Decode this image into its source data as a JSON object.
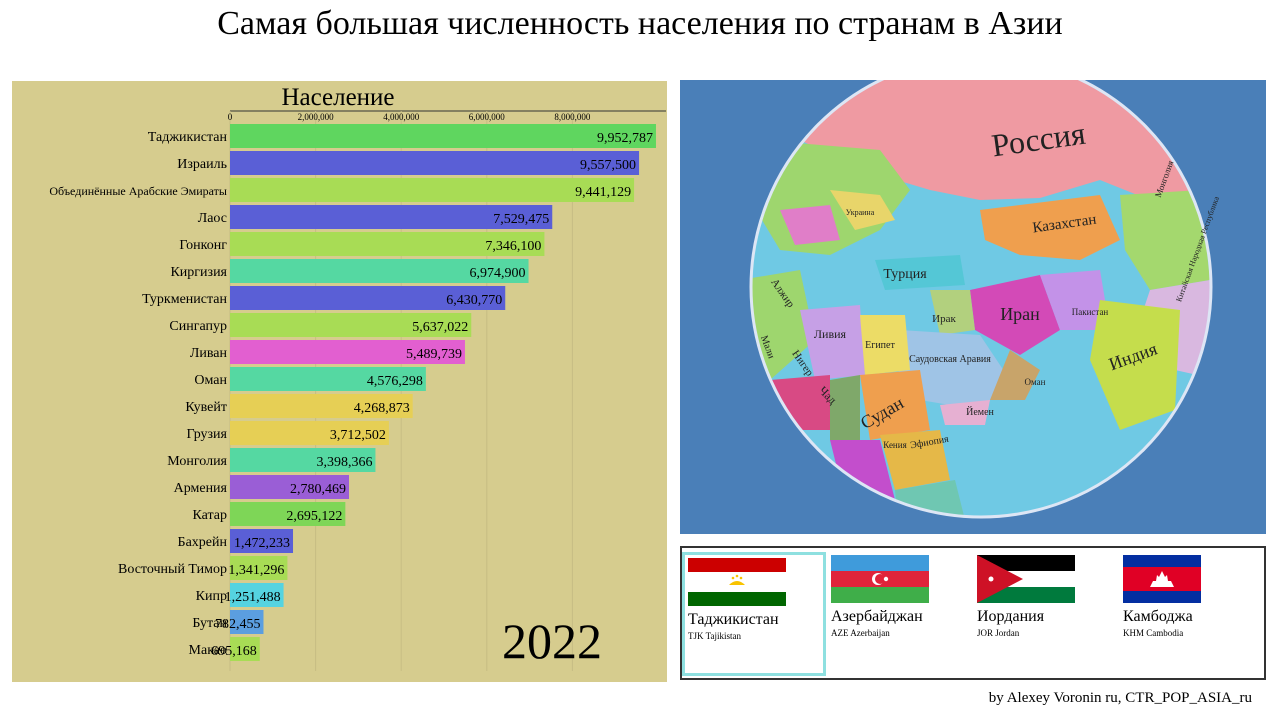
{
  "title": "Самая большая численность населения по странам в Азии",
  "credit": "by Alexey Voronin ru, CTR_POP_ASIA_ru",
  "year": "2022",
  "chart_data": {
    "type": "bar",
    "orientation": "horizontal",
    "title": "Население",
    "xlim": [
      0,
      10000000
    ],
    "ticks": [
      0,
      2000000,
      4000000,
      6000000,
      8000000
    ],
    "tick_labels": [
      "0",
      "2,000,000",
      "4,000,000",
      "6,000,000",
      "8,000,000"
    ],
    "grid": true,
    "categories": [
      "Таджикистан",
      "Израиль",
      "Объединённые Арабские Эмираты",
      "Лаос",
      "Гонконг",
      "Киргизия",
      "Туркменистан",
      "Сингапур",
      "Ливан",
      "Оман",
      "Кувейт",
      "Грузия",
      "Монголия",
      "Армения",
      "Катар",
      "Бахрейн",
      "Восточный Тимор",
      "Кипр",
      "Бутан",
      "Макао"
    ],
    "values": [
      9952787,
      9557500,
      9441129,
      7529475,
      7346100,
      6974900,
      6430770,
      5637022,
      5489739,
      4576298,
      4268873,
      3712502,
      3398366,
      2780469,
      2695122,
      1472233,
      1341296,
      1251488,
      782455,
      695168
    ],
    "labels": [
      "9,952,787",
      "9,557,500",
      "9,441,129",
      "7,529,475",
      "7,346,100",
      "6,974,900",
      "6,430,770",
      "5,637,022",
      "5,489,739",
      "4,576,298",
      "4,268,873",
      "3,712,502",
      "3,398,366",
      "2,780,469",
      "2,695,122",
      "1,472,233",
      "1,341,296",
      "1,251,488",
      "782,455",
      "695,168"
    ],
    "colors": [
      "#5fd65f",
      "#5a5fd6",
      "#a8dc55",
      "#5a5fd6",
      "#a8dc55",
      "#55d8a2",
      "#5a5fd6",
      "#a8dc55",
      "#e25fd0",
      "#55d8a2",
      "#e6cf55",
      "#e6cf55",
      "#55d8a2",
      "#9a5ed6",
      "#7ed657",
      "#5a5fd6",
      "#a8dc55",
      "#55d3e0",
      "#5b9ee0",
      "#a8dc55"
    ]
  },
  "globe": {
    "labels": [
      "Россия",
      "Казахстан",
      "Монголия",
      "Китайская Народная Республика",
      "Украина",
      "Турция",
      "Ирак",
      "Иран",
      "Пакистан",
      "Индия",
      "Алжир",
      "Ливия",
      "Египет",
      "Мали",
      "Нигер",
      "Чад",
      "Судан",
      "Саудовская Аравия",
      "Оман",
      "Йемен",
      "Эфиопия",
      "Кения"
    ]
  },
  "flags": [
    {
      "name": "Таджикистан",
      "code": "TJK Tajikistan",
      "colors": [
        "#cc0000",
        "#ffffff",
        "#006600"
      ]
    },
    {
      "name": "Азербайджан",
      "code": "AZE Azerbaijan",
      "colors": [
        "#3f9bdb",
        "#e0243a",
        "#3fae49"
      ]
    },
    {
      "name": "Иордания",
      "code": "JOR Jordan",
      "colors": [
        "#000000",
        "#ffffff",
        "#007a3d",
        "#ce1126"
      ]
    },
    {
      "name": "Камбоджа",
      "code": "KHM Cambodia",
      "colors": [
        "#032ea1",
        "#e00025",
        "#ffffff"
      ]
    }
  ]
}
